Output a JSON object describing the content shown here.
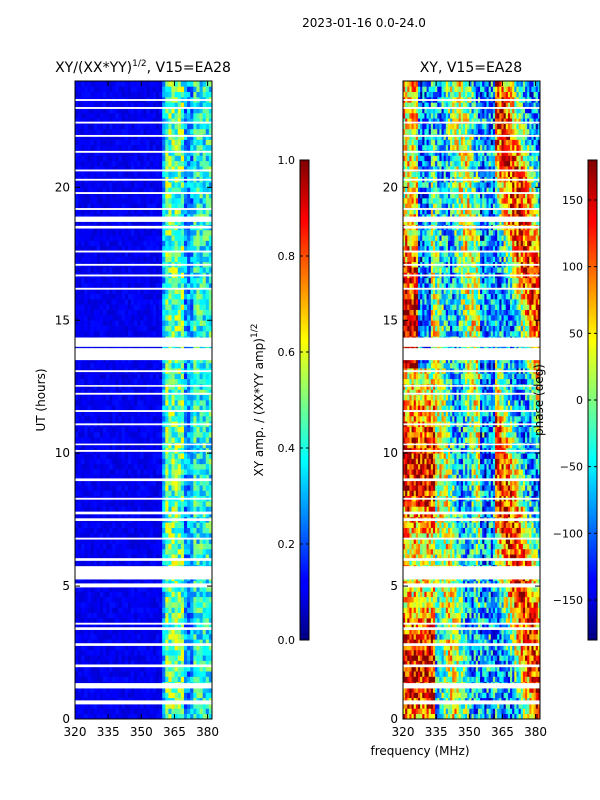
{
  "suptitle": "2023-01-16 0.0-24.0",
  "colors": {
    "flag_white": "#ffffff",
    "axis": "#000000"
  },
  "chart_data": [
    {
      "type": "heatmap",
      "title": "XY/(XX*YY)",
      "title_exp": "1/2",
      "title_suffix": ", V15=EA28",
      "xlabel": "",
      "ylabel": "UT (hours)",
      "xlim": [
        320,
        382
      ],
      "ylim": [
        0,
        24
      ],
      "xticks": [
        320,
        335,
        350,
        365,
        380
      ],
      "yticks": [
        0,
        5,
        10,
        15,
        20
      ],
      "colorbar": {
        "label": "XY amp. / (XX*YY amp)",
        "label_exp": "1/2",
        "range": [
          0.0,
          1.0
        ],
        "ticks": [
          "0.0",
          "0.2",
          "0.4",
          "0.6",
          "0.8",
          "1.0"
        ],
        "colormap": "jet"
      }
    },
    {
      "type": "heatmap",
      "title": "XY, V15=EA28",
      "xlabel": "frequency (MHz)",
      "ylabel": "",
      "xlim": [
        320,
        382
      ],
      "ylim": [
        0,
        24
      ],
      "xticks": [
        320,
        335,
        350,
        365,
        380
      ],
      "yticks": [
        0,
        5,
        10,
        15,
        20
      ],
      "colorbar": {
        "label": "phase (deg)",
        "range": [
          -180,
          180
        ],
        "ticks": [
          "−150",
          "−100",
          "−50",
          "0",
          "50",
          "100",
          "150"
        ],
        "colormap": "jet"
      }
    }
  ],
  "flagged_hours": [
    [
      0.55,
      0.7
    ],
    [
      1.15,
      1.35
    ],
    [
      1.95,
      2.05
    ],
    [
      2.75,
      2.85
    ],
    [
      3.35,
      3.45
    ],
    [
      3.55,
      3.62
    ],
    [
      4.95,
      5.1
    ],
    [
      5.25,
      5.75
    ],
    [
      5.95,
      6.05
    ],
    [
      6.75,
      6.82
    ],
    [
      7.45,
      7.55
    ],
    [
      7.7,
      7.8
    ],
    [
      8.25,
      8.32
    ],
    [
      8.95,
      9.05
    ],
    [
      10.05,
      10.12
    ],
    [
      10.3,
      10.36
    ],
    [
      11.05,
      11.12
    ],
    [
      11.55,
      11.62
    ],
    [
      12.2,
      12.27
    ],
    [
      12.5,
      12.56
    ],
    [
      13.05,
      13.12
    ],
    [
      13.5,
      13.95
    ],
    [
      14.0,
      14.35
    ],
    [
      16.15,
      16.22
    ],
    [
      16.65,
      16.72
    ],
    [
      17.05,
      17.12
    ],
    [
      17.55,
      17.62
    ],
    [
      18.45,
      18.55
    ],
    [
      18.7,
      18.9
    ],
    [
      19.15,
      19.22
    ],
    [
      19.75,
      19.82
    ],
    [
      20.25,
      20.32
    ],
    [
      20.6,
      20.67
    ],
    [
      21.3,
      21.37
    ],
    [
      21.9,
      21.97
    ],
    [
      22.4,
      22.47
    ],
    [
      22.95,
      23.02
    ],
    [
      23.25,
      23.32
    ]
  ]
}
